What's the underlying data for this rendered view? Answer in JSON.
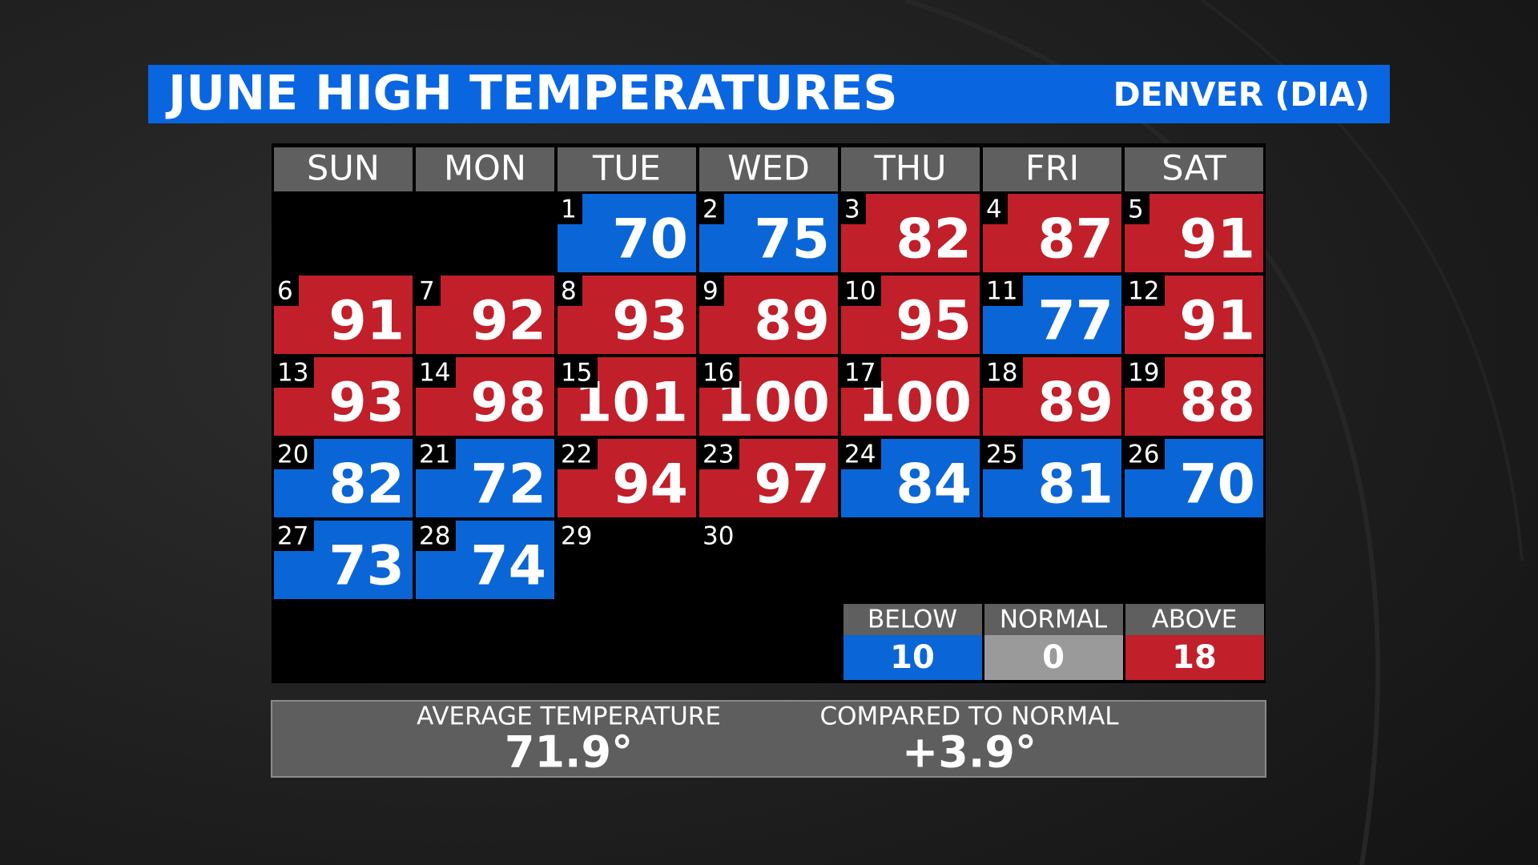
{
  "header": {
    "title": "JUNE HIGH TEMPERATURES",
    "location": "DENVER (DIA)"
  },
  "calendar": {
    "weekdays": [
      "SUN",
      "MON",
      "TUE",
      "WED",
      "THU",
      "FRI",
      "SAT"
    ],
    "days": [
      {
        "day": 1,
        "temp": 70,
        "color": "#0a66d6"
      },
      {
        "day": 2,
        "temp": 75,
        "color": "#0a66d6"
      },
      {
        "day": 3,
        "temp": 82,
        "color": "#c11f2a"
      },
      {
        "day": 4,
        "temp": 87,
        "color": "#c11f2a"
      },
      {
        "day": 5,
        "temp": 91,
        "color": "#c11f2a"
      },
      {
        "day": 6,
        "temp": 91,
        "color": "#c11f2a"
      },
      {
        "day": 7,
        "temp": 92,
        "color": "#c11f2a"
      },
      {
        "day": 8,
        "temp": 93,
        "color": "#c11f2a"
      },
      {
        "day": 9,
        "temp": 89,
        "color": "#c11f2a"
      },
      {
        "day": 10,
        "temp": 95,
        "color": "#c11f2a"
      },
      {
        "day": 11,
        "temp": 77,
        "color": "#0a66d6"
      },
      {
        "day": 12,
        "temp": 91,
        "color": "#c11f2a"
      },
      {
        "day": 13,
        "temp": 93,
        "color": "#c11f2a"
      },
      {
        "day": 14,
        "temp": 98,
        "color": "#c11f2a"
      },
      {
        "day": 15,
        "temp": 101,
        "color": "#c11f2a"
      },
      {
        "day": 16,
        "temp": 100,
        "color": "#c11f2a"
      },
      {
        "day": 17,
        "temp": 100,
        "color": "#c11f2a"
      },
      {
        "day": 18,
        "temp": 89,
        "color": "#c11f2a"
      },
      {
        "day": 19,
        "temp": 88,
        "color": "#c11f2a"
      },
      {
        "day": 20,
        "temp": 82,
        "color": "#0a66d6"
      },
      {
        "day": 21,
        "temp": 72,
        "color": "#0a66d6"
      },
      {
        "day": 22,
        "temp": 94,
        "color": "#c11f2a"
      },
      {
        "day": 23,
        "temp": 97,
        "color": "#c11f2a"
      },
      {
        "day": 24,
        "temp": 84,
        "color": "#0a66d6"
      },
      {
        "day": 25,
        "temp": 81,
        "color": "#0a66d6"
      },
      {
        "day": 26,
        "temp": 70,
        "color": "#0a66d6"
      },
      {
        "day": 27,
        "temp": 73,
        "color": "#0a66d6"
      },
      {
        "day": 28,
        "temp": 74,
        "color": "#0a66d6"
      },
      {
        "day": 29
      },
      {
        "day": 30
      }
    ]
  },
  "legend": [
    {
      "label": "BELOW",
      "count": 10,
      "color": "#0a66d6"
    },
    {
      "label": "NORMAL",
      "count": 0,
      "color": "#9a9a9a"
    },
    {
      "label": "ABOVE",
      "count": 18,
      "color": "#c11f2a"
    }
  ],
  "summary": [
    {
      "label": "AVERAGE TEMPERATURE",
      "value": "71.9°"
    },
    {
      "label": "COMPARED TO NORMAL",
      "value": "+3.9°"
    }
  ]
}
